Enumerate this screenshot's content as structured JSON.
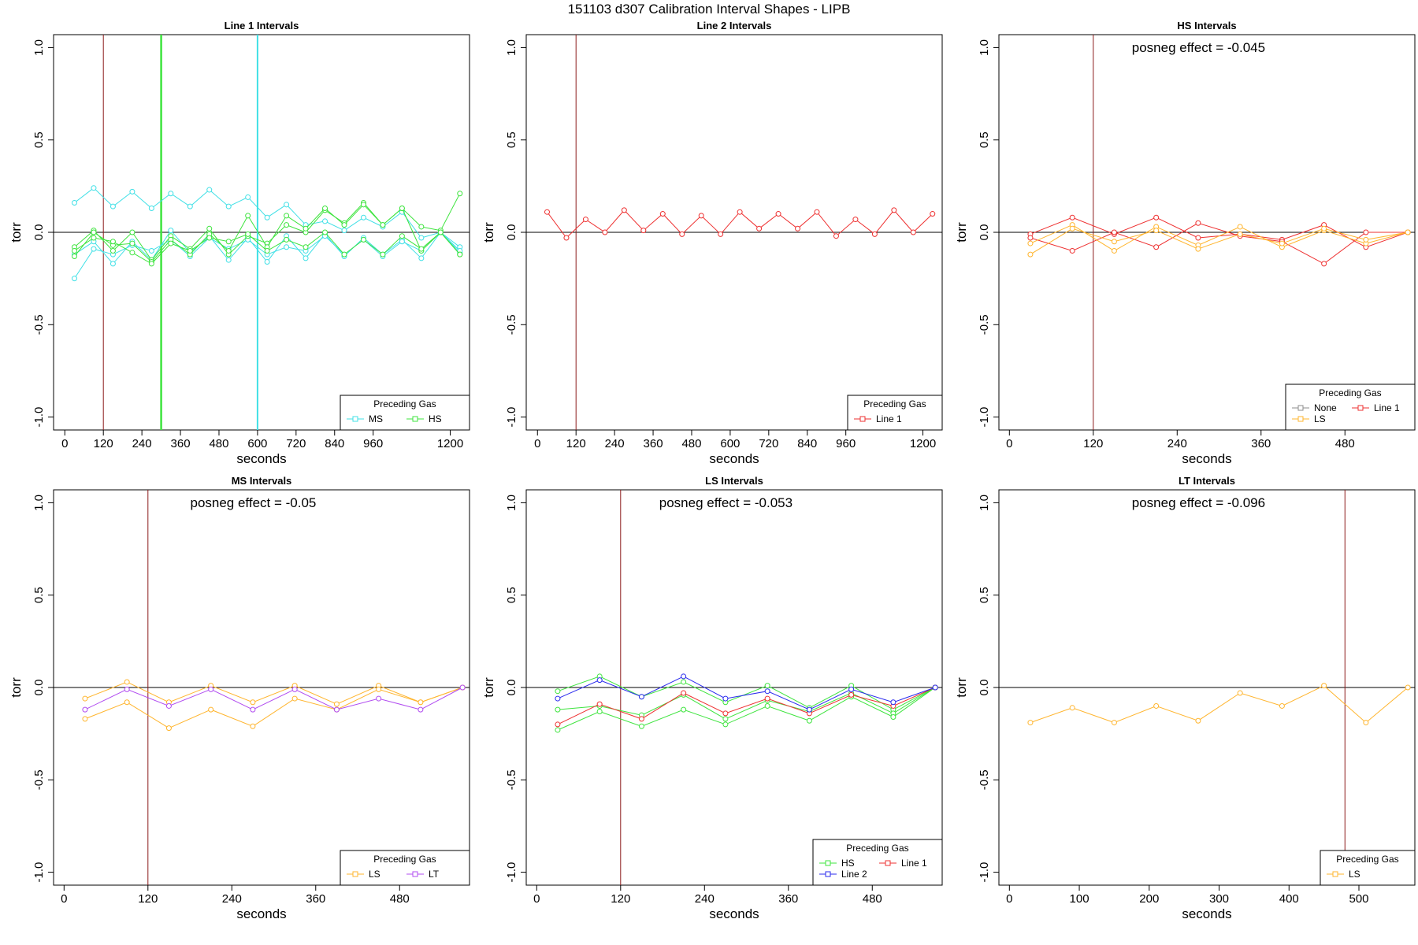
{
  "title": "151103   d307   Calibration Interval Shapes - LIPB",
  "colors": {
    "ref_line": "#8b1a1a",
    "MS": "#40e0e6",
    "HS": "#3ee43e",
    "LS": "#ffb52e",
    "LT": "#b14cf0",
    "Line 1": "#ee3030",
    "Line 2": "#2a2aee",
    "None": "#8c8c8c"
  },
  "chart_data": [
    {
      "type": "line",
      "title": "Line 1 Intervals",
      "xlabel": "seconds",
      "ylabel": "torr",
      "xlim": [
        -35,
        1260
      ],
      "ylim": [
        -1.07,
        1.07
      ],
      "xticks": [
        0,
        120,
        240,
        360,
        480,
        600,
        720,
        840,
        960,
        1200
      ],
      "yticks": [
        -1.0,
        -0.5,
        0.0,
        0.5,
        1.0
      ],
      "ytick_labels": [
        "-1.0",
        "-0.5",
        "0.0",
        "0.5",
        "1.0"
      ],
      "vlines": [
        {
          "x": 120,
          "color": "ref_line",
          "width": 1
        },
        {
          "x": 300,
          "color": "HS",
          "width": 2.5
        },
        {
          "x": 600,
          "color": "MS",
          "width": 2
        }
      ],
      "annotation": "",
      "legend": {
        "title": "Preceding Gas",
        "entries": [
          {
            "label": "MS",
            "color": "MS"
          },
          {
            "label": "HS",
            "color": "HS"
          }
        ],
        "columns": 2
      },
      "x": [
        30,
        90,
        150,
        210,
        270,
        330,
        390,
        450,
        510,
        570,
        630,
        690,
        750,
        810,
        870,
        930,
        990,
        1050,
        1110,
        1170,
        1230
      ],
      "series": [
        {
          "name": "MS",
          "color": "MS",
          "values": [
            0.16,
            0.24,
            0.14,
            0.22,
            0.13,
            0.21,
            0.14,
            0.23,
            0.14,
            0.19,
            0.08,
            0.15,
            0.04,
            0.06,
            0.01,
            0.08,
            0.03,
            0.11,
            -0.03,
            0.0,
            -0.08
          ]
        },
        {
          "name": "MS",
          "color": "MS",
          "values": [
            -0.12,
            -0.05,
            -0.17,
            -0.05,
            -0.15,
            0.01,
            -0.11,
            -0.02,
            -0.15,
            -0.03,
            -0.16,
            -0.02,
            -0.14,
            -0.01,
            -0.13,
            -0.03,
            -0.12,
            -0.04,
            -0.14,
            0.0,
            -0.11
          ]
        },
        {
          "name": "MS",
          "color": "MS",
          "values": [
            -0.25,
            -0.09,
            -0.12,
            -0.07,
            -0.1,
            -0.04,
            -0.13,
            -0.03,
            -0.09,
            -0.04,
            -0.12,
            -0.08,
            -0.1,
            -0.02,
            -0.12,
            -0.04,
            -0.13,
            -0.05,
            -0.1,
            0.0,
            -0.1
          ]
        },
        {
          "name": "HS",
          "color": "HS",
          "values": [
            -0.08,
            0.01,
            -0.1,
            0.0,
            -0.15,
            -0.02,
            -0.09,
            0.02,
            -0.12,
            -0.02,
            -0.06,
            0.04,
            0.0,
            0.12,
            0.05,
            0.16,
            0.04,
            0.13,
            0.03,
            0.01,
            0.21
          ]
        },
        {
          "name": "HS",
          "color": "HS",
          "values": [
            -0.13,
            0.0,
            -0.07,
            -0.06,
            -0.16,
            -0.04,
            -0.12,
            -0.01,
            -0.1,
            0.09,
            -0.08,
            0.09,
            0.02,
            0.13,
            0.04,
            0.15,
            0.04,
            0.13,
            -0.1,
            0.0,
            -0.12
          ]
        },
        {
          "name": "HS",
          "color": "HS",
          "values": [
            -0.1,
            -0.03,
            -0.05,
            -0.11,
            -0.17,
            -0.06,
            -0.1,
            -0.03,
            -0.05,
            -0.01,
            -0.1,
            -0.04,
            -0.08,
            0.0,
            -0.12,
            -0.04,
            -0.12,
            -0.02,
            -0.09,
            0.0,
            -0.12
          ]
        }
      ]
    },
    {
      "type": "line",
      "title": "Line 2 Intervals",
      "xlabel": "seconds",
      "ylabel": "torr",
      "xlim": [
        -35,
        1260
      ],
      "ylim": [
        -1.07,
        1.07
      ],
      "xticks": [
        0,
        120,
        240,
        360,
        480,
        600,
        720,
        840,
        960,
        1200
      ],
      "yticks": [
        -1.0,
        -0.5,
        0.0,
        0.5,
        1.0
      ],
      "ytick_labels": [
        "-1.0",
        "-0.5",
        "0.0",
        "0.5",
        "1.0"
      ],
      "vlines": [
        {
          "x": 120,
          "color": "ref_line",
          "width": 1
        }
      ],
      "annotation": "",
      "legend": {
        "title": "Preceding Gas",
        "entries": [
          {
            "label": "Line 1",
            "color": "Line 1"
          }
        ],
        "columns": 1
      },
      "x": [
        30,
        90,
        150,
        210,
        270,
        330,
        390,
        450,
        510,
        570,
        630,
        690,
        750,
        810,
        870,
        930,
        990,
        1050,
        1110,
        1170,
        1230
      ],
      "series": [
        {
          "name": "Line 1",
          "color": "Line 1",
          "values": [
            0.11,
            -0.03,
            0.07,
            0.0,
            0.12,
            0.01,
            0.1,
            -0.01,
            0.09,
            -0.01,
            0.11,
            0.02,
            0.1,
            0.02,
            0.11,
            -0.02,
            0.07,
            -0.01,
            0.12,
            0.0,
            0.1
          ]
        }
      ]
    },
    {
      "type": "line",
      "title": "HS Intervals",
      "xlabel": "seconds",
      "ylabel": "torr",
      "xlim": [
        -15,
        580
      ],
      "ylim": [
        -1.07,
        1.07
      ],
      "xticks": [
        0,
        120,
        240,
        360,
        480
      ],
      "yticks": [
        -1.0,
        -0.5,
        0.0,
        0.5,
        1.0
      ],
      "ytick_labels": [
        "-1.0",
        "-0.5",
        "0.0",
        "0.5",
        "1.0"
      ],
      "vlines": [
        {
          "x": 120,
          "color": "ref_line",
          "width": 1
        }
      ],
      "annotation": "posneg effect = -0.045",
      "legend": {
        "title": "Preceding Gas",
        "entries": [
          {
            "label": "None",
            "color": "None"
          },
          {
            "label": "Line 1",
            "color": "Line 1"
          },
          {
            "label": "LS",
            "color": "LS"
          }
        ],
        "columns": 2
      },
      "x": [
        30,
        90,
        150,
        210,
        270,
        330,
        390,
        450,
        510,
        570
      ],
      "series": [
        {
          "name": "Line 1",
          "color": "Line 1",
          "values": [
            -0.01,
            0.08,
            -0.01,
            0.08,
            -0.03,
            -0.01,
            -0.04,
            0.04,
            -0.08,
            0.0
          ]
        },
        {
          "name": "Line 1",
          "color": "Line 1",
          "values": [
            -0.03,
            -0.1,
            0.0,
            -0.08,
            0.05,
            -0.02,
            -0.05,
            -0.17,
            0.0,
            0.0
          ]
        },
        {
          "name": "LS",
          "color": "LS",
          "values": [
            -0.06,
            0.04,
            -0.1,
            0.03,
            -0.07,
            0.03,
            -0.08,
            0.01,
            -0.06,
            0.0
          ]
        },
        {
          "name": "LS",
          "color": "LS",
          "values": [
            -0.12,
            0.02,
            -0.05,
            0.01,
            -0.09,
            -0.01,
            -0.06,
            0.02,
            -0.04,
            0.0
          ]
        }
      ]
    },
    {
      "type": "line",
      "title": "MS Intervals",
      "xlabel": "seconds",
      "ylabel": "torr",
      "xlim": [
        -15,
        580
      ],
      "ylim": [
        -1.07,
        1.07
      ],
      "xticks": [
        0,
        120,
        240,
        360,
        480
      ],
      "yticks": [
        -1.0,
        -0.5,
        0.0,
        0.5,
        1.0
      ],
      "ytick_labels": [
        "-1.0",
        "-0.5",
        "0.0",
        "0.5",
        "1.0"
      ],
      "vlines": [
        {
          "x": 120,
          "color": "ref_line",
          "width": 1
        }
      ],
      "annotation": "posneg effect = -0.05",
      "legend": {
        "title": "Preceding Gas",
        "entries": [
          {
            "label": "LS",
            "color": "LS"
          },
          {
            "label": "LT",
            "color": "LT"
          }
        ],
        "columns": 2
      },
      "x": [
        30,
        90,
        150,
        210,
        270,
        330,
        390,
        450,
        510,
        570
      ],
      "series": [
        {
          "name": "LS",
          "color": "LS",
          "values": [
            -0.06,
            0.03,
            -0.08,
            0.01,
            -0.08,
            0.01,
            -0.09,
            0.01,
            -0.08,
            0.0
          ]
        },
        {
          "name": "LS",
          "color": "LS",
          "values": [
            -0.17,
            -0.08,
            -0.22,
            -0.12,
            -0.21,
            -0.06,
            -0.12,
            -0.01,
            -0.08,
            0.0
          ]
        },
        {
          "name": "LT",
          "color": "LT",
          "values": [
            -0.12,
            -0.01,
            -0.1,
            -0.01,
            -0.12,
            -0.01,
            -0.12,
            -0.06,
            -0.12,
            0.0
          ]
        }
      ]
    },
    {
      "type": "line",
      "title": "LS Intervals",
      "xlabel": "seconds",
      "ylabel": "torr",
      "xlim": [
        -15,
        580
      ],
      "ylim": [
        -1.07,
        1.07
      ],
      "xticks": [
        0,
        120,
        240,
        360,
        480
      ],
      "yticks": [
        -1.0,
        -0.5,
        0.0,
        0.5,
        1.0
      ],
      "ytick_labels": [
        "-1.0",
        "-0.5",
        "0.0",
        "0.5",
        "1.0"
      ],
      "vlines": [
        {
          "x": 120,
          "color": "ref_line",
          "width": 1
        }
      ],
      "annotation": "posneg effect = -0.053",
      "legend": {
        "title": "Preceding Gas",
        "entries": [
          {
            "label": "HS",
            "color": "HS"
          },
          {
            "label": "Line 1",
            "color": "Line 1"
          },
          {
            "label": "Line 2",
            "color": "Line 2"
          }
        ],
        "columns": 2
      },
      "x": [
        30,
        90,
        150,
        210,
        270,
        330,
        390,
        450,
        510,
        570
      ],
      "series": [
        {
          "name": "HS",
          "color": "HS",
          "values": [
            -0.02,
            0.06,
            -0.05,
            0.03,
            -0.08,
            0.01,
            -0.11,
            0.01,
            -0.12,
            0.0
          ]
        },
        {
          "name": "HS",
          "color": "HS",
          "values": [
            -0.12,
            -0.1,
            -0.15,
            -0.04,
            -0.17,
            -0.07,
            -0.13,
            -0.03,
            -0.14,
            0.0
          ]
        },
        {
          "name": "HS",
          "color": "HS",
          "values": [
            -0.23,
            -0.13,
            -0.21,
            -0.12,
            -0.2,
            -0.1,
            -0.18,
            -0.05,
            -0.16,
            0.0
          ]
        },
        {
          "name": "Line 1",
          "color": "Line 1",
          "values": [
            -0.2,
            -0.09,
            -0.17,
            -0.03,
            -0.14,
            -0.06,
            -0.14,
            -0.04,
            -0.1,
            0.0
          ]
        },
        {
          "name": "Line 2",
          "color": "Line 2",
          "values": [
            -0.06,
            0.04,
            -0.05,
            0.06,
            -0.06,
            -0.02,
            -0.12,
            -0.01,
            -0.08,
            0.0
          ]
        }
      ]
    },
    {
      "type": "line",
      "title": "LT Intervals",
      "xlabel": "seconds",
      "ylabel": "torr",
      "xlim": [
        -15,
        580
      ],
      "ylim": [
        -1.07,
        1.07
      ],
      "xticks": [
        0,
        100,
        200,
        300,
        400,
        500
      ],
      "yticks": [
        -1.0,
        -0.5,
        0.0,
        0.5,
        1.0
      ],
      "ytick_labels": [
        "-1.0",
        "-0.5",
        "0.0",
        "0.5",
        "1.0"
      ],
      "vlines": [
        {
          "x": 480,
          "color": "ref_line",
          "width": 1
        }
      ],
      "annotation": "posneg effect = -0.096",
      "legend": {
        "title": "Preceding Gas",
        "entries": [
          {
            "label": "LS",
            "color": "LS"
          }
        ],
        "columns": 1
      },
      "x": [
        30,
        90,
        150,
        210,
        270,
        330,
        390,
        450,
        510,
        570
      ],
      "series": [
        {
          "name": "LS",
          "color": "LS",
          "values": [
            -0.19,
            -0.11,
            -0.19,
            -0.1,
            -0.18,
            -0.03,
            -0.1,
            0.01,
            -0.19,
            0.0
          ]
        }
      ]
    }
  ]
}
